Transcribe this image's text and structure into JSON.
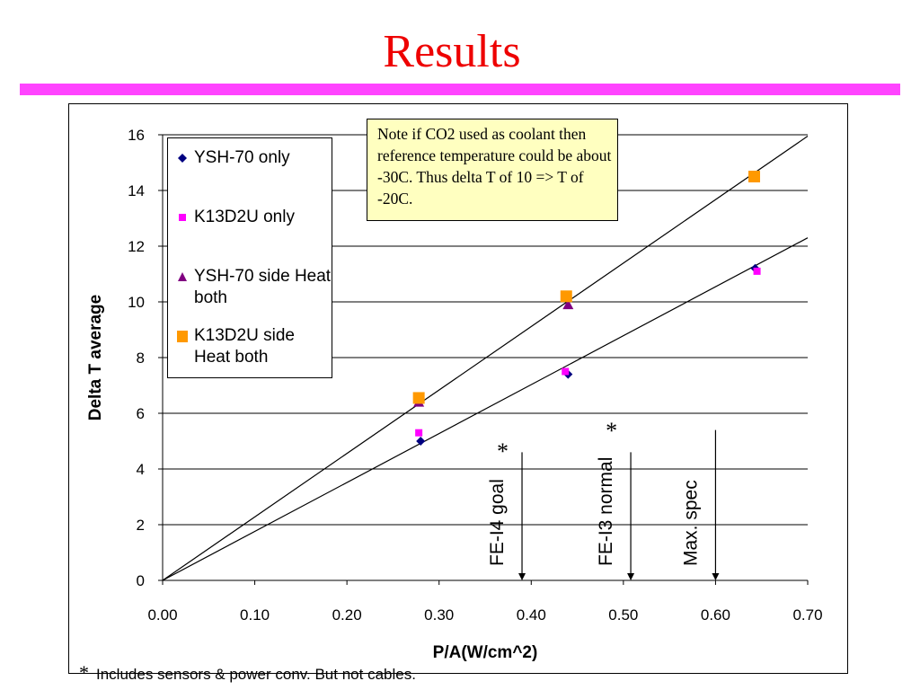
{
  "slide": {
    "title": "Results",
    "title_color": "#ee0000",
    "rule_color": "#ff44ff"
  },
  "note": {
    "text": "Note if CO2 used as coolant then reference temperature could be about -30C. Thus delta T of 10 => T of -20C.",
    "background": "#ffffc0"
  },
  "footnote": {
    "marker": "*",
    "text": "Includes sensors & power conv. But not cables."
  },
  "chart_data": {
    "type": "scatter",
    "xlabel": "P/A(W/cm^2)",
    "ylabel": "Delta T average",
    "xlim": [
      0,
      0.7
    ],
    "ylim": [
      0,
      16
    ],
    "x_ticks": [
      "0.00",
      "0.10",
      "0.20",
      "0.30",
      "0.40",
      "0.50",
      "0.60",
      "0.70"
    ],
    "y_ticks": [
      "0",
      "2",
      "4",
      "6",
      "8",
      "10",
      "12",
      "14",
      "16"
    ],
    "grid": "horizontal",
    "legend_position": "top-left",
    "series": [
      {
        "name": "YSH-70 only",
        "marker": "diamond",
        "color": "#000080",
        "points": [
          [
            0.28,
            5.0
          ],
          [
            0.44,
            7.4
          ],
          [
            0.643,
            11.2
          ]
        ]
      },
      {
        "name": "K13D2U only",
        "marker": "square-small",
        "color": "#ff00ff",
        "points": [
          [
            0.278,
            5.3
          ],
          [
            0.437,
            7.5
          ],
          [
            0.645,
            11.1
          ]
        ]
      },
      {
        "name": "YSH-70 side Heat both",
        "marker": "triangle",
        "color": "#800080",
        "points": [
          [
            0.278,
            6.4
          ],
          [
            0.44,
            9.9
          ]
        ]
      },
      {
        "name": "K13D2U side Heat both",
        "marker": "square",
        "color": "#ff9900",
        "points": [
          [
            0.278,
            6.55
          ],
          [
            0.438,
            10.2
          ],
          [
            0.642,
            14.5
          ]
        ]
      }
    ],
    "fit_lines": [
      {
        "from": [
          0,
          0
        ],
        "to": [
          0.7,
          15.95
        ]
      },
      {
        "from": [
          0,
          0
        ],
        "to": [
          0.7,
          12.3
        ]
      }
    ],
    "annotations": [
      {
        "label": "FE-I4 goal",
        "star": "*",
        "x": 0.39,
        "arrow_top": 4.6
      },
      {
        "label": "FE-I3 normal",
        "star": "*",
        "x": 0.508,
        "arrow_top": 4.6
      },
      {
        "label": "Max. spec",
        "star": "",
        "x": 0.6,
        "arrow_top": 5.4
      }
    ]
  }
}
